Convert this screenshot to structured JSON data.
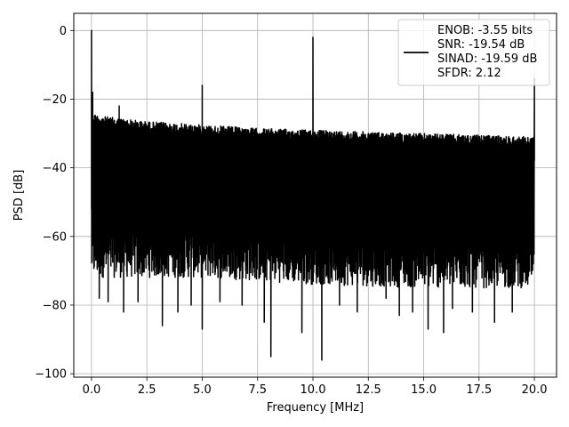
{
  "chart_data": {
    "type": "line",
    "title": "",
    "xlabel": "Frequency [MHz]",
    "ylabel": "PSD [dB]",
    "xlim": [
      -0.8,
      21.0
    ],
    "ylim": [
      -101,
      5
    ],
    "x_ticks": [
      0.0,
      2.5,
      5.0,
      7.5,
      10.0,
      12.5,
      15.0,
      17.5,
      20.0
    ],
    "x_tick_labels": [
      "0.0",
      "2.5",
      "5.0",
      "7.5",
      "10.0",
      "12.5",
      "15.0",
      "17.5",
      "20.0"
    ],
    "y_ticks": [
      0,
      -20,
      -40,
      -60,
      -80,
      -100
    ],
    "y_tick_labels": [
      "0",
      "−20",
      "−40",
      "−60",
      "−80",
      "−100"
    ],
    "grid": true,
    "legend_position": "top-right",
    "series": [
      {
        "name": "ENOB: -3.55 bits\nSNR: -19.54 dB\nSINAD: -19.59 dB\nSFDR: 2.12",
        "color": "#000000",
        "x_range": [
          0.0,
          20.0
        ],
        "noise_ceiling": {
          "x": [
            0.0,
            0.5,
            2.5,
            5.0,
            7.5,
            10.0,
            12.5,
            15.0,
            17.5,
            20.0
          ],
          "y": [
            -24,
            -25,
            -26.5,
            -27.5,
            -28.5,
            -29,
            -29.5,
            -30,
            -30.5,
            -31
          ]
        },
        "noise_floor": {
          "x": [
            0.0,
            5.0,
            10.0,
            15.0,
            20.0
          ],
          "y": [
            -70,
            -70,
            -72,
            -73,
            -73
          ]
        },
        "spikes": [
          {
            "x": 0.0,
            "y": 0.0
          },
          {
            "x": 0.05,
            "y": -18
          },
          {
            "x": 1.25,
            "y": -22
          },
          {
            "x": 5.0,
            "y": -16
          },
          {
            "x": 10.0,
            "y": -2
          },
          {
            "x": 20.0,
            "y": -14
          }
        ],
        "dips": [
          {
            "x": 0.35,
            "y": -78
          },
          {
            "x": 0.75,
            "y": -79
          },
          {
            "x": 1.45,
            "y": -82
          },
          {
            "x": 2.1,
            "y": -79
          },
          {
            "x": 3.2,
            "y": -86
          },
          {
            "x": 3.9,
            "y": -82
          },
          {
            "x": 4.5,
            "y": -80
          },
          {
            "x": 5.0,
            "y": -87
          },
          {
            "x": 5.8,
            "y": -79
          },
          {
            "x": 6.8,
            "y": -80
          },
          {
            "x": 7.8,
            "y": -85
          },
          {
            "x": 8.1,
            "y": -95
          },
          {
            "x": 9.5,
            "y": -88
          },
          {
            "x": 10.4,
            "y": -96
          },
          {
            "x": 11.2,
            "y": -80
          },
          {
            "x": 12.0,
            "y": -82
          },
          {
            "x": 13.3,
            "y": -78
          },
          {
            "x": 13.9,
            "y": -83
          },
          {
            "x": 14.5,
            "y": -82
          },
          {
            "x": 15.2,
            "y": -87
          },
          {
            "x": 15.9,
            "y": -88
          },
          {
            "x": 16.3,
            "y": -81
          },
          {
            "x": 17.2,
            "y": -82
          },
          {
            "x": 18.2,
            "y": -85
          },
          {
            "x": 19.0,
            "y": -82
          }
        ]
      }
    ]
  }
}
